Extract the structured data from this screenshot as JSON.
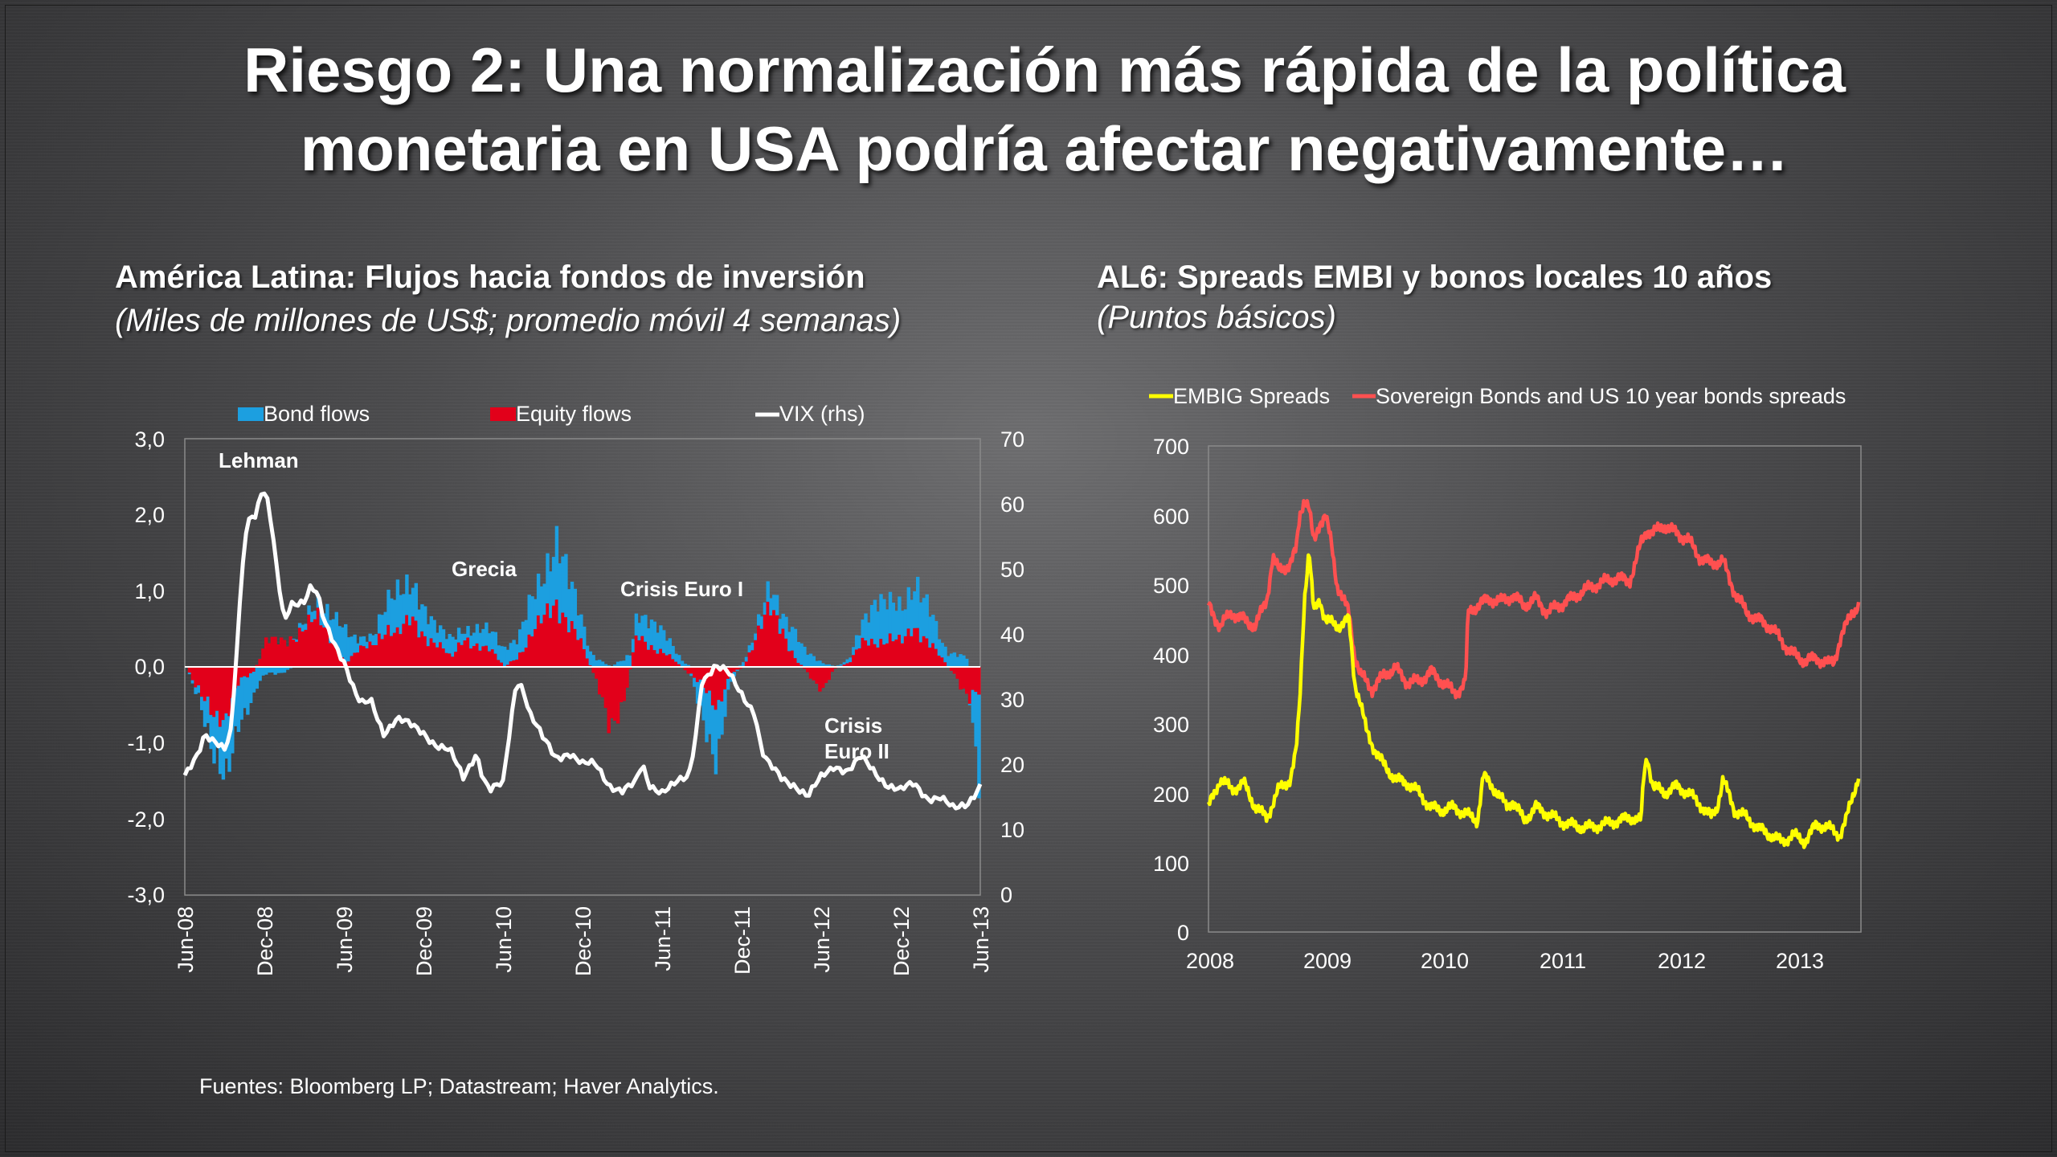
{
  "slide": {
    "title_line1": "Riesgo 2: Una normalización más rápida de la política",
    "title_line2": "monetaria en USA podría afectar negativamente…",
    "source": "Fuentes: Bloomberg LP; Datastream; Haver Analytics."
  },
  "colors": {
    "bond": "#1c9fe0",
    "equity": "#e2001a",
    "vix": "#ffffff",
    "embig": "#ffff00",
    "sovereign": "#ff5050"
  },
  "chart_data": [
    {
      "type": "bar",
      "title": "América Latina: Flujos hacia fondos de inversión",
      "subtitle": "(Miles de millones de US$; promedio móvil 4 semanas)",
      "legend": [
        "Bond flows",
        "Equity flows",
        "VIX (rhs)"
      ],
      "y_left": {
        "min": -3,
        "max": 3,
        "ticks": [
          "3,0",
          "2,0",
          "1,0",
          "0,0",
          "-1,0",
          "-2,0",
          "-3,0"
        ]
      },
      "y_right": {
        "min": 0,
        "max": 70,
        "ticks": [
          "70",
          "60",
          "50",
          "40",
          "30",
          "20",
          "10",
          "0"
        ]
      },
      "x_ticks": [
        "Jun-08",
        "Dec-08",
        "Jun-09",
        "Dec-09",
        "Jun-10",
        "Dec-10",
        "Jun-11",
        "Dec-11",
        "Jun-12",
        "Dec-12",
        "Jun-13"
      ],
      "annotations": [
        {
          "text": "Lehman",
          "t": 4.9
        },
        {
          "text": "Grecia",
          "t": 23
        },
        {
          "text": "Crisis Euro I",
          "t": 38
        },
        {
          "text": "Crisis",
          "t": 51
        },
        {
          "text": "Euro II",
          "t": 51
        }
      ],
      "months": 60,
      "equity_keypoints": [
        [
          0,
          0.0
        ],
        [
          1,
          -0.4
        ],
        [
          2,
          -0.6
        ],
        [
          3,
          -0.6
        ],
        [
          4,
          -0.2
        ],
        [
          5,
          -0.1
        ],
        [
          6,
          0.3
        ],
        [
          7,
          0.35
        ],
        [
          9,
          0.5
        ],
        [
          10,
          0.6
        ],
        [
          11,
          0.4
        ],
        [
          12,
          0.05
        ],
        [
          13,
          0.2
        ],
        [
          14,
          0.3
        ],
        [
          15,
          0.55
        ],
        [
          16,
          0.4
        ],
        [
          17,
          0.6
        ],
        [
          18,
          0.45
        ],
        [
          19,
          0.3
        ],
        [
          20,
          0.1
        ],
        [
          21,
          0.4
        ],
        [
          22,
          0.3
        ],
        [
          23,
          0.2
        ],
        [
          24,
          0.0
        ],
        [
          25,
          0.15
        ],
        [
          26,
          0.4
        ],
        [
          27,
          0.6
        ],
        [
          28,
          0.9
        ],
        [
          29,
          0.6
        ],
        [
          30,
          0.2
        ],
        [
          31,
          -0.2
        ],
        [
          32,
          -1.0
        ],
        [
          33,
          -0.4
        ],
        [
          34,
          0.4
        ],
        [
          35,
          0.3
        ],
        [
          36,
          0.2
        ],
        [
          37,
          0.05
        ],
        [
          38,
          -0.1
        ],
        [
          39,
          -0.3
        ],
        [
          40,
          -0.5
        ],
        [
          41,
          -0.1
        ],
        [
          42,
          0.0
        ],
        [
          43,
          0.4
        ],
        [
          44,
          0.7
        ],
        [
          45,
          0.5
        ],
        [
          46,
          0.1
        ],
        [
          47,
          -0.1
        ],
        [
          48,
          -0.3
        ],
        [
          49,
          0.0
        ],
        [
          50,
          0.05
        ],
        [
          51,
          0.3
        ],
        [
          52,
          0.35
        ],
        [
          53,
          0.4
        ],
        [
          54,
          0.3
        ],
        [
          55,
          0.5
        ],
        [
          56,
          0.4
        ],
        [
          57,
          0.1
        ],
        [
          58,
          -0.1
        ],
        [
          59,
          -0.5
        ],
        [
          60,
          -0.3
        ]
      ],
      "bond_keypoints": [
        [
          0,
          0.0
        ],
        [
          1,
          -0.1
        ],
        [
          2,
          -0.5
        ],
        [
          3,
          -0.9
        ],
        [
          4,
          -0.5
        ],
        [
          5,
          -0.3
        ],
        [
          6,
          -0.1
        ],
        [
          7,
          -0.1
        ],
        [
          9,
          0.1
        ],
        [
          10,
          0.2
        ],
        [
          11,
          0.3
        ],
        [
          12,
          0.4
        ],
        [
          13,
          0.15
        ],
        [
          14,
          0.1
        ],
        [
          15,
          0.3
        ],
        [
          16,
          0.6
        ],
        [
          17,
          0.5
        ],
        [
          18,
          0.3
        ],
        [
          19,
          0.2
        ],
        [
          20,
          0.3
        ],
        [
          21,
          0.1
        ],
        [
          22,
          0.2
        ],
        [
          23,
          0.3
        ],
        [
          24,
          0.25
        ],
        [
          25,
          0.2
        ],
        [
          26,
          0.5
        ],
        [
          27,
          0.6
        ],
        [
          28,
          0.8
        ],
        [
          29,
          0.5
        ],
        [
          30,
          0.3
        ],
        [
          31,
          0.1
        ],
        [
          32,
          0.0
        ],
        [
          33,
          0.1
        ],
        [
          34,
          0.3
        ],
        [
          35,
          0.3
        ],
        [
          36,
          0.25
        ],
        [
          37,
          0.15
        ],
        [
          38,
          0.0
        ],
        [
          39,
          -0.4
        ],
        [
          40,
          -0.8
        ],
        [
          41,
          -0.1
        ],
        [
          42,
          0.05
        ],
        [
          43,
          0.1
        ],
        [
          44,
          0.3
        ],
        [
          45,
          0.2
        ],
        [
          46,
          0.3
        ],
        [
          47,
          0.2
        ],
        [
          48,
          0.05
        ],
        [
          49,
          0.0
        ],
        [
          50,
          0.05
        ],
        [
          51,
          0.3
        ],
        [
          52,
          0.5
        ],
        [
          53,
          0.45
        ],
        [
          54,
          0.5
        ],
        [
          55,
          0.6
        ],
        [
          56,
          0.4
        ],
        [
          57,
          0.2
        ],
        [
          58,
          0.2
        ],
        [
          59,
          0.1
        ],
        [
          60,
          -1.4
        ]
      ],
      "vix_keypoints": [
        [
          0,
          18
        ],
        [
          1,
          22
        ],
        [
          1.5,
          25
        ],
        [
          2.5,
          23
        ],
        [
          3,
          22
        ],
        [
          3.5,
          25
        ],
        [
          4,
          40
        ],
        [
          4.5,
          55
        ],
        [
          5,
          59
        ],
        [
          5.3,
          58
        ],
        [
          5.8,
          62
        ],
        [
          6.3,
          60
        ],
        [
          7,
          49
        ],
        [
          7.5,
          42
        ],
        [
          8,
          45
        ],
        [
          9,
          45
        ],
        [
          9.5,
          47
        ],
        [
          10,
          46
        ],
        [
          10.5,
          42
        ],
        [
          11,
          40
        ],
        [
          12,
          36
        ],
        [
          13,
          30
        ],
        [
          13.5,
          29
        ],
        [
          14,
          30
        ],
        [
          15,
          25
        ],
        [
          16,
          27
        ],
        [
          17,
          26
        ],
        [
          18,
          25
        ],
        [
          19,
          23
        ],
        [
          20,
          22
        ],
        [
          20.5,
          20
        ],
        [
          21,
          18
        ],
        [
          22,
          22
        ],
        [
          22.5,
          18
        ],
        [
          23,
          16
        ],
        [
          24,
          17
        ],
        [
          24.5,
          25
        ],
        [
          25,
          33
        ],
        [
          25.5,
          32
        ],
        [
          26,
          28
        ],
        [
          27,
          24
        ],
        [
          28,
          21
        ],
        [
          29,
          22
        ],
        [
          30,
          20
        ],
        [
          31,
          20
        ],
        [
          32,
          17
        ],
        [
          33,
          16
        ],
        [
          34,
          17
        ],
        [
          34.5,
          20
        ],
        [
          35,
          17
        ],
        [
          36,
          16
        ],
        [
          37,
          17
        ],
        [
          38,
          18
        ],
        [
          38.5,
          24
        ],
        [
          39,
          33
        ],
        [
          40,
          35
        ],
        [
          41,
          34
        ],
        [
          42,
          31
        ],
        [
          43,
          28
        ],
        [
          43.5,
          22
        ],
        [
          44,
          20
        ],
        [
          45,
          18
        ],
        [
          46,
          17
        ],
        [
          47,
          15
        ],
        [
          48,
          18
        ],
        [
          49,
          20
        ],
        [
          50,
          19
        ],
        [
          51,
          21
        ],
        [
          52,
          19
        ],
        [
          53,
          17
        ],
        [
          54,
          16
        ],
        [
          55,
          17
        ],
        [
          56,
          15
        ],
        [
          57,
          15
        ],
        [
          58,
          13
        ],
        [
          59,
          14
        ],
        [
          60,
          17
        ]
      ],
      "events": []
    },
    {
      "type": "line",
      "title": "AL6: Spreads EMBI y bonos locales 10 años",
      "subtitle": "(Puntos básicos)",
      "legend": [
        "EMBIG Spreads",
        "Sovereign Bonds and US 10 year bonds spreads"
      ],
      "ylim": [
        0,
        700
      ],
      "y_ticks": [
        "700",
        "600",
        "500",
        "400",
        "300",
        "200",
        "100",
        "0"
      ],
      "x_ticks": [
        "2008",
        "2009",
        "2010",
        "2011",
        "2012",
        "2013"
      ],
      "xlim": [
        2008,
        2013.58
      ],
      "embig_keypoints": [
        [
          2008.0,
          180
        ],
        [
          2008.1,
          220
        ],
        [
          2008.2,
          205
        ],
        [
          2008.3,
          215
        ],
        [
          2008.4,
          180
        ],
        [
          2008.5,
          165
        ],
        [
          2008.6,
          205
        ],
        [
          2008.7,
          220
        ],
        [
          2008.75,
          260
        ],
        [
          2008.78,
          330
        ],
        [
          2008.82,
          480
        ],
        [
          2008.86,
          550
        ],
        [
          2008.9,
          460
        ],
        [
          2008.95,
          480
        ],
        [
          2009.0,
          450
        ],
        [
          2009.1,
          440
        ],
        [
          2009.2,
          450
        ],
        [
          2009.25,
          360
        ],
        [
          2009.3,
          330
        ],
        [
          2009.35,
          290
        ],
        [
          2009.4,
          270
        ],
        [
          2009.5,
          240
        ],
        [
          2009.6,
          220
        ],
        [
          2009.7,
          215
        ],
        [
          2009.8,
          200
        ],
        [
          2009.9,
          180
        ],
        [
          2010.0,
          175
        ],
        [
          2010.1,
          180
        ],
        [
          2010.2,
          170
        ],
        [
          2010.3,
          160
        ],
        [
          2010.35,
          225
        ],
        [
          2010.45,
          205
        ],
        [
          2010.55,
          180
        ],
        [
          2010.6,
          190
        ],
        [
          2010.7,
          160
        ],
        [
          2010.8,
          180
        ],
        [
          2010.9,
          170
        ],
        [
          2011.0,
          160
        ],
        [
          2011.2,
          150
        ],
        [
          2011.4,
          155
        ],
        [
          2011.6,
          165
        ],
        [
          2011.7,
          160
        ],
        [
          2011.72,
          220
        ],
        [
          2011.75,
          255
        ],
        [
          2011.8,
          210
        ],
        [
          2011.9,
          200
        ],
        [
          2012.0,
          210
        ],
        [
          2012.1,
          200
        ],
        [
          2012.2,
          185
        ],
        [
          2012.3,
          165
        ],
        [
          2012.35,
          180
        ],
        [
          2012.4,
          220
        ],
        [
          2012.5,
          175
        ],
        [
          2012.6,
          165
        ],
        [
          2012.7,
          150
        ],
        [
          2012.8,
          140
        ],
        [
          2012.9,
          130
        ],
        [
          2013.0,
          140
        ],
        [
          2013.1,
          130
        ],
        [
          2013.2,
          155
        ],
        [
          2013.3,
          150
        ],
        [
          2013.4,
          140
        ],
        [
          2013.45,
          160
        ],
        [
          2013.5,
          190
        ],
        [
          2013.56,
          225
        ]
      ],
      "sov_keypoints": [
        [
          2008.0,
          470
        ],
        [
          2008.1,
          440
        ],
        [
          2008.2,
          460
        ],
        [
          2008.3,
          450
        ],
        [
          2008.4,
          440
        ],
        [
          2008.5,
          480
        ],
        [
          2008.55,
          540
        ],
        [
          2008.6,
          520
        ],
        [
          2008.7,
          530
        ],
        [
          2008.75,
          550
        ],
        [
          2008.78,
          600
        ],
        [
          2008.82,
          625
        ],
        [
          2008.86,
          610
        ],
        [
          2008.9,
          560
        ],
        [
          2008.95,
          590
        ],
        [
          2009.0,
          600
        ],
        [
          2009.05,
          560
        ],
        [
          2009.1,
          500
        ],
        [
          2009.2,
          460
        ],
        [
          2009.25,
          400
        ],
        [
          2009.3,
          370
        ],
        [
          2009.4,
          350
        ],
        [
          2009.5,
          370
        ],
        [
          2009.6,
          380
        ],
        [
          2009.7,
          360
        ],
        [
          2009.8,
          360
        ],
        [
          2009.9,
          375
        ],
        [
          2010.0,
          360
        ],
        [
          2010.1,
          345
        ],
        [
          2010.15,
          350
        ],
        [
          2010.2,
          360
        ],
        [
          2010.22,
          460
        ],
        [
          2010.3,
          470
        ],
        [
          2010.4,
          480
        ],
        [
          2010.5,
          475
        ],
        [
          2010.6,
          485
        ],
        [
          2010.7,
          470
        ],
        [
          2010.8,
          480
        ],
        [
          2010.9,
          460
        ],
        [
          2011.0,
          470
        ],
        [
          2011.1,
          480
        ],
        [
          2011.2,
          490
        ],
        [
          2011.3,
          500
        ],
        [
          2011.4,
          505
        ],
        [
          2011.5,
          510
        ],
        [
          2011.6,
          505
        ],
        [
          2011.65,
          530
        ],
        [
          2011.7,
          560
        ],
        [
          2011.75,
          580
        ],
        [
          2011.8,
          575
        ],
        [
          2011.9,
          585
        ],
        [
          2012.0,
          575
        ],
        [
          2012.1,
          565
        ],
        [
          2012.2,
          540
        ],
        [
          2012.3,
          530
        ],
        [
          2012.4,
          535
        ],
        [
          2012.45,
          510
        ],
        [
          2012.5,
          490
        ],
        [
          2012.6,
          460
        ],
        [
          2012.7,
          450
        ],
        [
          2012.8,
          440
        ],
        [
          2012.9,
          420
        ],
        [
          2013.0,
          400
        ],
        [
          2013.1,
          390
        ],
        [
          2013.2,
          395
        ],
        [
          2013.3,
          385
        ],
        [
          2013.35,
          390
        ],
        [
          2013.4,
          420
        ],
        [
          2013.5,
          460
        ],
        [
          2013.56,
          470
        ]
      ]
    }
  ]
}
